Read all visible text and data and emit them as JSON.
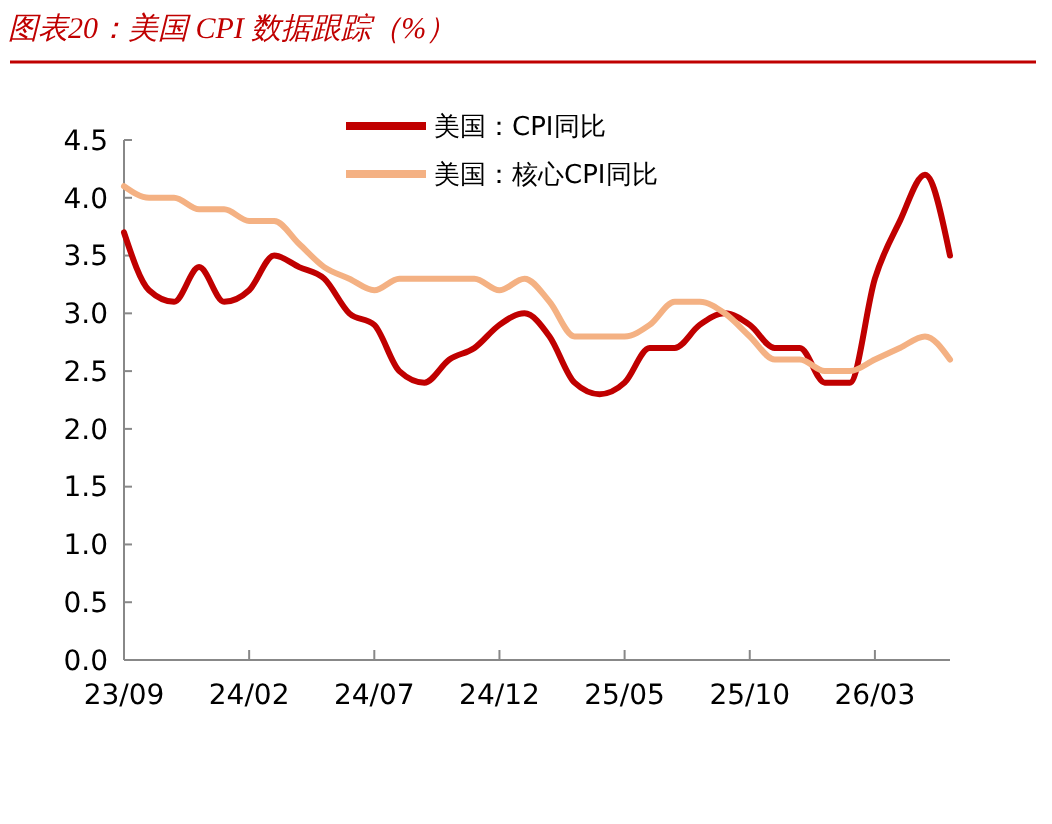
{
  "chart_data": {
    "type": "line",
    "title": "图表20：美国 CPI 数据跟踪（%）",
    "categories": [
      "23/09",
      null,
      null,
      null,
      null,
      "24/02",
      null,
      null,
      null,
      null,
      "24/07",
      null,
      null,
      null,
      null,
      "24/12",
      null,
      null,
      null,
      null,
      "25/05",
      null,
      null,
      null,
      null,
      "25/10",
      null,
      null,
      null,
      null,
      "26/03",
      null,
      null,
      null
    ],
    "series": [
      {
        "name": "美国：CPI同比",
        "color": "#c00000",
        "values": [
          3.7,
          3.2,
          3.1,
          3.4,
          3.1,
          3.2,
          3.5,
          3.4,
          3.3,
          3.0,
          2.9,
          2.5,
          2.4,
          2.6,
          2.7,
          2.9,
          3.0,
          2.8,
          2.4,
          2.3,
          2.4,
          2.7,
          2.7,
          2.9,
          3.0,
          2.9,
          2.7,
          2.7,
          2.4,
          2.4,
          3.3,
          3.8,
          4.2,
          3.5
        ]
      },
      {
        "name": "美国：核心CPI同比",
        "color": "#f4b183",
        "values": [
          4.1,
          4.0,
          4.0,
          3.9,
          3.9,
          3.8,
          3.8,
          3.6,
          3.4,
          3.3,
          3.2,
          3.3,
          3.3,
          3.3,
          3.3,
          3.2,
          3.3,
          3.1,
          2.8,
          2.8,
          2.8,
          2.9,
          3.1,
          3.1,
          3.0,
          2.8,
          2.6,
          2.6,
          2.5,
          2.5,
          2.6,
          2.7,
          2.8,
          2.6
        ]
      }
    ],
    "ylim": [
      0,
      4.5
    ],
    "yticks": [
      {
        "value": 0,
        "label": "0.0"
      },
      0.5,
      {
        "value": 1,
        "label": "1.0"
      },
      1.5,
      {
        "value": 2,
        "label": "2.0"
      },
      2.5,
      {
        "value": 3,
        "label": "3.0"
      },
      3.5,
      {
        "value": 4,
        "label": "4.0"
      },
      4.5
    ],
    "grid": false,
    "legend": "top right",
    "line_style": "solid"
  }
}
